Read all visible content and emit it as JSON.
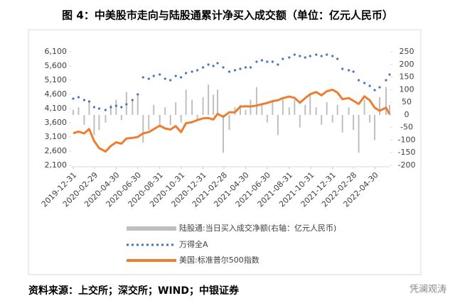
{
  "chart_data": {
    "type": "combo",
    "title": "图 4：中美股市走向与陆股通累计净买入成交额（单位：亿元人民币）",
    "source": "资料来源：上交所；深交所；WIND；中银证券",
    "watermark": "凭澜观涛",
    "x": [
      "2019-12-31",
      "2020-01-15",
      "2020-01-31",
      "2020-02-14",
      "2020-02-28",
      "2020-03-13",
      "2020-03-31",
      "2020-04-15",
      "2020-04-30",
      "2020-05-15",
      "2020-05-29",
      "2020-06-15",
      "2020-06-30",
      "2020-07-15",
      "2020-07-31",
      "2020-08-14",
      "2020-08-31",
      "2020-09-15",
      "2020-09-30",
      "2020-10-15",
      "2020-10-30",
      "2020-11-13",
      "2020-11-30",
      "2020-12-15",
      "2020-12-31",
      "2021-01-15",
      "2021-01-29",
      "2021-02-10",
      "2021-02-26",
      "2021-03-15",
      "2021-03-31",
      "2021-04-15",
      "2021-04-30",
      "2021-05-14",
      "2021-05-31",
      "2021-06-15",
      "2021-06-30",
      "2021-07-15",
      "2021-07-30",
      "2021-08-13",
      "2021-08-31",
      "2021-09-15",
      "2021-09-30",
      "2021-10-15",
      "2021-10-29",
      "2021-11-15",
      "2021-11-30",
      "2021-12-15",
      "2021-12-31",
      "2022-01-14",
      "2022-01-28",
      "2022-02-15",
      "2022-02-28",
      "2022-03-15",
      "2022-03-31",
      "2022-04-15",
      "2022-04-29",
      "2022-05-13",
      "2022-05-31",
      "2022-06-10"
    ],
    "series": [
      {
        "name": "陆股通:当日买入成交净额(右轴：亿元人民币)",
        "type": "bar",
        "axis": "y2",
        "color": "#bfbfbf",
        "values": [
          20,
          30,
          -40,
          50,
          -80,
          -60,
          -30,
          40,
          60,
          -20,
          90,
          60,
          80,
          -110,
          -60,
          40,
          -50,
          30,
          -40,
          50,
          -30,
          100,
          60,
          -20,
          70,
          120,
          80,
          100,
          -150,
          -60,
          30,
          40,
          20,
          60,
          110,
          40,
          -30,
          50,
          -80,
          70,
          30,
          60,
          -50,
          40,
          80,
          30,
          -40,
          50,
          -30,
          40,
          -70,
          30,
          -60,
          -150,
          60,
          -30,
          -100,
          70,
          110,
          40
        ]
      },
      {
        "name": "万得全A",
        "type": "dots",
        "color": "#4472c4",
        "values": [
          4450,
          4500,
          4400,
          4350,
          4150,
          4100,
          4050,
          4150,
          4200,
          4150,
          4250,
          4400,
          4600,
          5200,
          5150,
          5250,
          5300,
          5150,
          5100,
          5250,
          5200,
          5350,
          5400,
          5450,
          5550,
          5650,
          5600,
          5700,
          5550,
          5400,
          5450,
          5500,
          5550,
          5550,
          5750,
          5800,
          5750,
          5750,
          5650,
          5850,
          5900,
          6000,
          5950,
          5900,
          5950,
          6000,
          5950,
          6000,
          5950,
          5850,
          5500,
          5450,
          5400,
          5100,
          5000,
          4900,
          4750,
          4850,
          5100,
          5300
        ]
      },
      {
        "name": "美国:标准普尔500指数",
        "type": "line",
        "color": "#ed7d31",
        "values": [
          3231,
          3289,
          3226,
          3380,
          2954,
          2711,
          2585,
          2783,
          2912,
          2864,
          3044,
          3067,
          3100,
          3227,
          3271,
          3373,
          3500,
          3401,
          3363,
          3483,
          3270,
          3585,
          3622,
          3695,
          3756,
          3768,
          3714,
          3916,
          3811,
          3969,
          3973,
          4170,
          4181,
          4174,
          4204,
          4255,
          4297,
          4360,
          4395,
          4468,
          4523,
          4480,
          4308,
          4471,
          4605,
          4683,
          4567,
          4710,
          4766,
          4663,
          4432,
          4471,
          4374,
          4262,
          4530,
          4392,
          4132,
          4023,
          4132,
          3901
        ]
      }
    ],
    "xlim": [
      "2019-12-31",
      "2022-06-10"
    ],
    "xticks": [
      "2019-12-31",
      "2020-02-29",
      "2020-04-30",
      "2020-06-30",
      "2020-08-31",
      "2020-10-31",
      "2020-12-31",
      "2021-02-28",
      "2021-04-30",
      "2021-06-30",
      "2021-08-31",
      "2021-10-31",
      "2021-12-31",
      "2022-02-28",
      "2022-04-30"
    ],
    "ylim": [
      2100,
      6100
    ],
    "yticks": [
      {
        "value": 2100,
        "label": "2,100"
      },
      {
        "value": 2600,
        "label": "2,600"
      },
      {
        "value": 3100,
        "label": "3,100"
      },
      {
        "value": 3600,
        "label": "3,600"
      },
      {
        "value": 4100,
        "label": "4,100"
      },
      {
        "value": 4600,
        "label": "4,600"
      },
      {
        "value": 5100,
        "label": "5,100"
      },
      {
        "value": 5600,
        "label": "5,600"
      },
      {
        "value": 6100,
        "label": "6,100"
      }
    ],
    "y2lim": [
      -200,
      250
    ],
    "y2ticks": [
      -200,
      -150,
      -100,
      -50,
      0,
      50,
      100,
      150,
      200,
      250
    ]
  }
}
